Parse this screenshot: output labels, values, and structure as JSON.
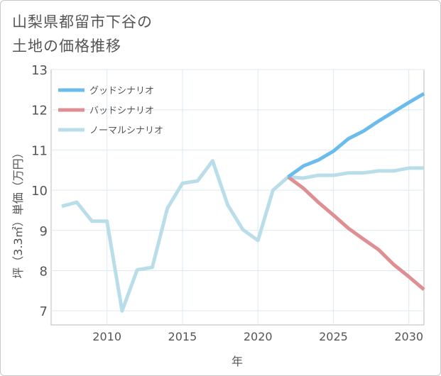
{
  "title": {
    "line1": "山梨県都留市下谷の",
    "line2": "土地の価格推移"
  },
  "chart_data": {
    "type": "line",
    "xlabel": "年",
    "ylabel": "坪（3.3㎡）単価（万円）",
    "xlim": [
      2006.3,
      2031
    ],
    "ylim": [
      6.65,
      13
    ],
    "x_ticks": [
      2010,
      2015,
      2020,
      2025,
      2030
    ],
    "y_ticks": [
      7,
      8,
      9,
      10,
      11,
      12,
      13
    ],
    "grid": true,
    "legend_position": "top-left",
    "series": [
      {
        "name": "グッドシナリオ",
        "color": "#6bbcec",
        "x": [
          2022,
          2023,
          2024,
          2025,
          2026,
          2027,
          2028,
          2029,
          2030,
          2031
        ],
        "values": [
          10.33,
          10.6,
          10.75,
          10.97,
          11.28,
          11.47,
          11.72,
          11.95,
          12.18,
          12.4
        ]
      },
      {
        "name": "バッドシナリオ",
        "color": "#df8f92",
        "x": [
          2022,
          2023,
          2024,
          2025,
          2026,
          2027,
          2028,
          2029,
          2030,
          2031
        ],
        "values": [
          10.33,
          10.05,
          9.7,
          9.38,
          9.05,
          8.78,
          8.52,
          8.15,
          7.85,
          7.53
        ]
      },
      {
        "name": "ノーマルシナリオ",
        "color": "#badee9",
        "x": [
          2007,
          2008,
          2009,
          2010,
          2011,
          2012,
          2013,
          2014,
          2015,
          2016,
          2017,
          2018,
          2019,
          2020,
          2021,
          2022,
          2023,
          2024,
          2025,
          2026,
          2027,
          2028,
          2029,
          2030,
          2031
        ],
        "values": [
          9.6,
          9.7,
          9.23,
          9.23,
          7.0,
          8.02,
          8.08,
          9.55,
          10.17,
          10.23,
          10.73,
          9.63,
          9.02,
          8.75,
          10.0,
          10.33,
          10.3,
          10.37,
          10.37,
          10.43,
          10.43,
          10.48,
          10.48,
          10.55,
          10.55
        ]
      }
    ]
  }
}
